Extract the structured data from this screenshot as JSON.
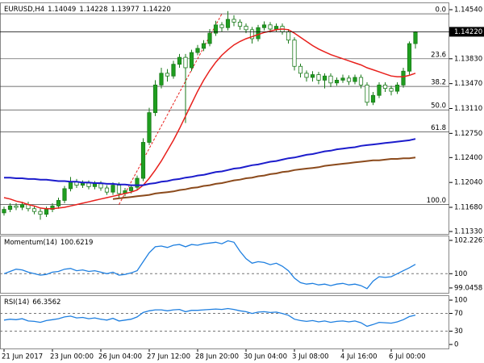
{
  "chart_data": [
    {
      "type": "candlestick",
      "title": "EURUSD,H4",
      "last_bar_labels": [
        "1.14049",
        "1.14228",
        "1.13977",
        "1.14220"
      ],
      "categories": [
        "21 Jun 2017",
        null,
        null,
        null,
        null,
        null,
        null,
        null,
        "23 Jun 00:00",
        null,
        null,
        null,
        null,
        null,
        null,
        null,
        "26 Jun 04:00",
        null,
        null,
        null,
        null,
        null,
        null,
        null,
        "27 Jun 12:00",
        null,
        null,
        null,
        null,
        null,
        null,
        null,
        "28 Jun 20:00",
        null,
        null,
        null,
        null,
        null,
        null,
        null,
        "30 Jun 04:00",
        null,
        null,
        null,
        null,
        null,
        null,
        null,
        "3 Jul 08:00",
        null,
        null,
        null,
        null,
        null,
        null,
        null,
        "4 Jul 16:00",
        null,
        null,
        null,
        null,
        null,
        null,
        null,
        "6 Jul 00:00",
        null,
        null,
        null,
        null
      ],
      "open": [
        1.116,
        1.1165,
        1.117,
        1.1168,
        1.1172,
        1.1166,
        1.1162,
        1.1158,
        1.1165,
        1.117,
        1.1178,
        1.1195,
        1.1205,
        1.12,
        1.1203,
        1.1198,
        1.1202,
        1.1196,
        1.119,
        1.12,
        1.1188,
        1.1192,
        1.1197,
        1.121,
        1.1262,
        1.1305,
        1.1345,
        1.1362,
        1.1358,
        1.1375,
        1.1385,
        1.137,
        1.1392,
        1.1398,
        1.1405,
        1.142,
        1.1432,
        1.1428,
        1.144,
        1.1436,
        1.143,
        1.1425,
        1.1412,
        1.1428,
        1.1432,
        1.1426,
        1.143,
        1.1422,
        1.141,
        1.1372,
        1.1362,
        1.1356,
        1.136,
        1.1352,
        1.1358,
        1.1348,
        1.1352,
        1.1355,
        1.135,
        1.1356,
        1.1345,
        1.132,
        1.133,
        1.1345,
        1.134,
        1.1336,
        1.1345,
        1.1365,
        1.14049
      ],
      "high": [
        1.1169,
        1.1174,
        1.1174,
        1.1176,
        1.1176,
        1.117,
        1.1166,
        1.1169,
        1.1174,
        1.1182,
        1.1199,
        1.1212,
        1.1209,
        1.1207,
        1.1207,
        1.1206,
        1.1206,
        1.12,
        1.1204,
        1.1204,
        1.1196,
        1.1201,
        1.1214,
        1.1268,
        1.1312,
        1.1352,
        1.137,
        1.1368,
        1.138,
        1.139,
        1.139,
        1.1396,
        1.1403,
        1.141,
        1.1426,
        1.1438,
        1.1436,
        1.1452,
        1.1446,
        1.144,
        1.1434,
        1.1429,
        1.1432,
        1.1437,
        1.1436,
        1.1434,
        1.1434,
        1.1426,
        1.1414,
        1.1376,
        1.1366,
        1.1365,
        1.1364,
        1.1362,
        1.1362,
        1.1356,
        1.136,
        1.1359,
        1.136,
        1.136,
        1.1349,
        1.1335,
        1.1349,
        1.1349,
        1.1344,
        1.1349,
        1.137,
        1.1408,
        1.14228
      ],
      "low": [
        1.1156,
        1.1161,
        1.1164,
        1.1164,
        1.1162,
        1.1158,
        1.115,
        1.1154,
        1.1161,
        1.1166,
        1.1174,
        1.1191,
        1.1196,
        1.1196,
        1.1194,
        1.1194,
        1.1192,
        1.1186,
        1.1186,
        1.1182,
        1.1184,
        1.1188,
        1.1193,
        1.1206,
        1.1258,
        1.13,
        1.134,
        1.135,
        1.1354,
        1.137,
        1.129,
        1.1365,
        1.1388,
        1.1394,
        1.1401,
        1.1416,
        1.1422,
        1.1424,
        1.143,
        1.1425,
        1.142,
        1.1405,
        1.1408,
        1.1424,
        1.1421,
        1.1422,
        1.1418,
        1.1405,
        1.1366,
        1.1356,
        1.135,
        1.135,
        1.1346,
        1.134,
        1.1342,
        1.1344,
        1.1348,
        1.1345,
        1.1346,
        1.134,
        1.1315,
        1.1316,
        1.1326,
        1.1335,
        1.133,
        1.1332,
        1.1341,
        1.136,
        1.13977
      ],
      "close": [
        1.1165,
        1.117,
        1.1168,
        1.1172,
        1.1166,
        1.1162,
        1.1158,
        1.1165,
        1.117,
        1.1178,
        1.1195,
        1.1205,
        1.12,
        1.1203,
        1.1198,
        1.1202,
        1.1196,
        1.119,
        1.12,
        1.1188,
        1.1192,
        1.1197,
        1.121,
        1.1262,
        1.1305,
        1.1345,
        1.1362,
        1.1358,
        1.1375,
        1.1385,
        1.137,
        1.1392,
        1.1398,
        1.1405,
        1.142,
        1.1432,
        1.1428,
        1.144,
        1.1436,
        1.143,
        1.1425,
        1.1412,
        1.1428,
        1.1432,
        1.1426,
        1.143,
        1.1422,
        1.141,
        1.1372,
        1.1362,
        1.1356,
        1.136,
        1.1352,
        1.1358,
        1.1348,
        1.1352,
        1.1355,
        1.135,
        1.1356,
        1.1345,
        1.132,
        1.133,
        1.1345,
        1.134,
        1.1336,
        1.1345,
        1.1365,
        1.14049,
        1.1422
      ],
      "up_color": "#1f9e1f",
      "down_color": "#ffffff",
      "wick_color": "#1a7a1a",
      "series": [
        {
          "color": "#e8201c",
          "values": [
            1.1182,
            1.118,
            1.1177,
            1.1175,
            1.1172,
            1.117,
            1.1167,
            1.1166,
            1.1166,
            1.1167,
            1.1168,
            1.117,
            1.1172,
            1.1174,
            1.1176,
            1.1178,
            1.118,
            1.1182,
            1.1184,
            1.1186,
            1.1188,
            1.119,
            1.1193,
            1.12,
            1.121,
            1.1222,
            1.1235,
            1.125,
            1.1265,
            1.1282,
            1.13,
            1.1318,
            1.1336,
            1.1352,
            1.1366,
            1.1378,
            1.1388,
            1.1396,
            1.1403,
            1.1408,
            1.1412,
            1.1415,
            1.1418,
            1.1421,
            1.1423,
            1.1425,
            1.1426,
            1.1425,
            1.142,
            1.1414,
            1.1408,
            1.1402,
            1.1397,
            1.1393,
            1.1389,
            1.1386,
            1.1383,
            1.138,
            1.1377,
            1.1374,
            1.137,
            1.1367,
            1.1364,
            1.1361,
            1.1358,
            1.1357,
            1.1357,
            1.1359,
            1.1362
          ]
        },
        {
          "color": "#1c1ccc",
          "values": [
            1.1211,
            1.1211,
            1.121,
            1.121,
            1.1209,
            1.1209,
            1.1208,
            1.1208,
            1.1207,
            1.1206,
            1.1206,
            1.1205,
            1.1205,
            1.1204,
            1.1204,
            1.1203,
            1.1203,
            1.1202,
            1.1202,
            1.1201,
            1.1201,
            1.12,
            1.12,
            1.12,
            1.1202,
            1.1203,
            1.1205,
            1.1206,
            1.1208,
            1.1209,
            1.1211,
            1.1212,
            1.1214,
            1.1215,
            1.1217,
            1.1219,
            1.122,
            1.1222,
            1.1224,
            1.1225,
            1.1227,
            1.1229,
            1.123,
            1.1232,
            1.1234,
            1.1235,
            1.1237,
            1.1239,
            1.124,
            1.1242,
            1.1244,
            1.1245,
            1.1247,
            1.1249,
            1.125,
            1.1252,
            1.1253,
            1.1254,
            1.1255,
            1.1257,
            1.1258,
            1.1259,
            1.126,
            1.1261,
            1.1262,
            1.1263,
            1.1264,
            1.1265,
            1.1267
          ]
        },
        {
          "color": "#8b4a1c",
          "values": [
            null,
            null,
            null,
            null,
            null,
            null,
            null,
            null,
            null,
            null,
            null,
            null,
            null,
            null,
            null,
            null,
            null,
            null,
            1.118,
            1.1181,
            1.1182,
            1.1183,
            1.1184,
            1.1185,
            1.1186,
            1.1188,
            1.1189,
            1.119,
            1.1191,
            1.1193,
            1.1194,
            1.1196,
            1.1197,
            1.1199,
            1.12,
            1.1202,
            1.1203,
            1.1205,
            1.1207,
            1.1208,
            1.121,
            1.1211,
            1.1213,
            1.1214,
            1.1216,
            1.1217,
            1.1219,
            1.122,
            1.1222,
            1.1223,
            1.1224,
            1.1225,
            1.1226,
            1.1228,
            1.1229,
            1.123,
            1.1231,
            1.1232,
            1.1233,
            1.1234,
            1.1235,
            1.1236,
            1.1236,
            1.1237,
            1.1238,
            1.1238,
            1.1239,
            1.1239,
            1.124
          ]
        }
      ],
      "fib_levels": [
        {
          "label": "0.0",
          "price": 1.1448
        },
        {
          "label": "23.6",
          "price": 1.1383
        },
        {
          "label": "38.2",
          "price": 1.1343
        },
        {
          "label": "50.0",
          "price": 1.1309
        },
        {
          "label": "61.8",
          "price": 1.1277
        },
        {
          "label": "100.0",
          "price": 1.1172
        }
      ],
      "fib_anchor": {
        "x": [
          19,
          36
        ],
        "price": [
          1.1172,
          1.1448
        ],
        "color": "#e8201c"
      },
      "ylim": [
        1.11295,
        1.14645
      ],
      "yticks": [
        {
          "value": 1.1454,
          "label": "1.14540"
        },
        {
          "value": 1.1383,
          "label": "1.13830"
        },
        {
          "value": 1.1347,
          "label": "1.13470"
        },
        {
          "value": 1.1311,
          "label": "1.13110"
        },
        {
          "value": 1.1275,
          "label": "1.12750"
        },
        {
          "value": 1.124,
          "label": "1.12400"
        },
        {
          "value": 1.1204,
          "label": "1.12040"
        },
        {
          "value": 1.1168,
          "label": "1.11680"
        },
        {
          "value": 1.1133,
          "label": "1.11330"
        }
      ]
    },
    {
      "type": "line",
      "title": "Momentum(14)",
      "color": "#1e7fe0",
      "values": [
        100.0,
        100.15,
        100.3,
        100.25,
        100.1,
        100.0,
        99.9,
        99.95,
        100.1,
        100.15,
        100.3,
        100.35,
        100.2,
        100.25,
        100.15,
        100.2,
        100.1,
        100.0,
        100.1,
        99.9,
        99.95,
        100.05,
        100.2,
        100.8,
        101.4,
        101.8,
        101.85,
        101.75,
        101.9,
        101.95,
        101.8,
        101.95,
        101.9,
        102.0,
        102.05,
        102.1,
        102.0,
        102.2,
        102.1,
        101.5,
        101.0,
        100.7,
        100.8,
        100.75,
        100.6,
        100.7,
        100.5,
        100.2,
        99.7,
        99.4,
        99.3,
        99.35,
        99.25,
        99.3,
        99.2,
        99.3,
        99.35,
        99.25,
        99.3,
        99.2,
        99.0,
        99.5,
        99.8,
        99.75,
        99.8,
        100.0,
        100.2,
        100.4,
        100.6219
      ],
      "levels": [
        100
      ],
      "ylim": [
        98.72,
        102.55
      ],
      "yticks": [
        102.2267,
        100,
        99.0458
      ]
    },
    {
      "type": "line",
      "title": "RSI(14)",
      "color": "#1e7fe0",
      "values": [
        55,
        57,
        56,
        58,
        53,
        52,
        50,
        54,
        56,
        58,
        62,
        64,
        60,
        61,
        58,
        60,
        57,
        55,
        59,
        53,
        55,
        57,
        62,
        72,
        76,
        78,
        78,
        76,
        78,
        79,
        74,
        77,
        77,
        78,
        79,
        80,
        79,
        81,
        79,
        76,
        74,
        70,
        73,
        74,
        72,
        73,
        70,
        66,
        57,
        54,
        52,
        54,
        51,
        53,
        50,
        52,
        53,
        51,
        53,
        49,
        41,
        45,
        50,
        49,
        48,
        51,
        56,
        63,
        66.3562
      ],
      "levels": [
        70,
        30
      ],
      "ylim": [
        -9,
        111
      ],
      "yticks": [
        100,
        70,
        30,
        0
      ]
    }
  ]
}
